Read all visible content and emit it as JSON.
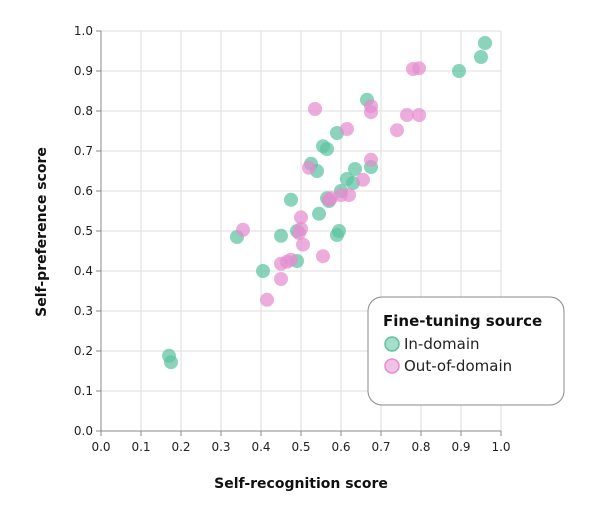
{
  "chart_data": {
    "type": "scatter",
    "xlabel": "Self-recognition score",
    "ylabel": "Self-preference score",
    "xlim": [
      0,
      1
    ],
    "ylim": [
      0,
      1
    ],
    "x_ticks": [
      "0.0",
      "0.1",
      "0.2",
      "0.3",
      "0.4",
      "0.5",
      "0.6",
      "0.7",
      "0.8",
      "0.9",
      "1.0"
    ],
    "y_ticks": [
      "0.0",
      "0.1",
      "0.2",
      "0.3",
      "0.4",
      "0.5",
      "0.6",
      "0.7",
      "0.8",
      "0.9",
      "1.0"
    ],
    "grid": true,
    "legend": {
      "title": "Fine-tuning source",
      "position": "bottom-right"
    },
    "series": [
      {
        "name": "In-domain",
        "color": "#5cc3a0",
        "points": [
          [
            0.96,
            0.97
          ],
          [
            0.95,
            0.935
          ],
          [
            0.895,
            0.9
          ],
          [
            0.665,
            0.828
          ],
          [
            0.59,
            0.745
          ],
          [
            0.555,
            0.712
          ],
          [
            0.565,
            0.705
          ],
          [
            0.525,
            0.668
          ],
          [
            0.54,
            0.65
          ],
          [
            0.675,
            0.66
          ],
          [
            0.635,
            0.655
          ],
          [
            0.63,
            0.62
          ],
          [
            0.615,
            0.63
          ],
          [
            0.6,
            0.6
          ],
          [
            0.475,
            0.578
          ],
          [
            0.565,
            0.582
          ],
          [
            0.57,
            0.575
          ],
          [
            0.545,
            0.543
          ],
          [
            0.59,
            0.49
          ],
          [
            0.595,
            0.5
          ],
          [
            0.49,
            0.5
          ],
          [
            0.45,
            0.488
          ],
          [
            0.34,
            0.485
          ],
          [
            0.49,
            0.425
          ],
          [
            0.405,
            0.4
          ],
          [
            0.17,
            0.188
          ],
          [
            0.175,
            0.172
          ]
        ]
      },
      {
        "name": "Out-of-domain",
        "color": "#e58ed0",
        "points": [
          [
            0.78,
            0.905
          ],
          [
            0.795,
            0.907
          ],
          [
            0.675,
            0.812
          ],
          [
            0.675,
            0.797
          ],
          [
            0.535,
            0.805
          ],
          [
            0.765,
            0.79
          ],
          [
            0.795,
            0.79
          ],
          [
            0.615,
            0.755
          ],
          [
            0.74,
            0.752
          ],
          [
            0.675,
            0.678
          ],
          [
            0.52,
            0.658
          ],
          [
            0.655,
            0.628
          ],
          [
            0.62,
            0.59
          ],
          [
            0.6,
            0.59
          ],
          [
            0.575,
            0.582
          ],
          [
            0.57,
            0.578
          ],
          [
            0.355,
            0.503
          ],
          [
            0.5,
            0.534
          ],
          [
            0.5,
            0.505
          ],
          [
            0.495,
            0.495
          ],
          [
            0.505,
            0.466
          ],
          [
            0.555,
            0.437
          ],
          [
            0.475,
            0.428
          ],
          [
            0.465,
            0.423
          ],
          [
            0.45,
            0.418
          ],
          [
            0.45,
            0.38
          ],
          [
            0.415,
            0.328
          ]
        ]
      }
    ]
  }
}
